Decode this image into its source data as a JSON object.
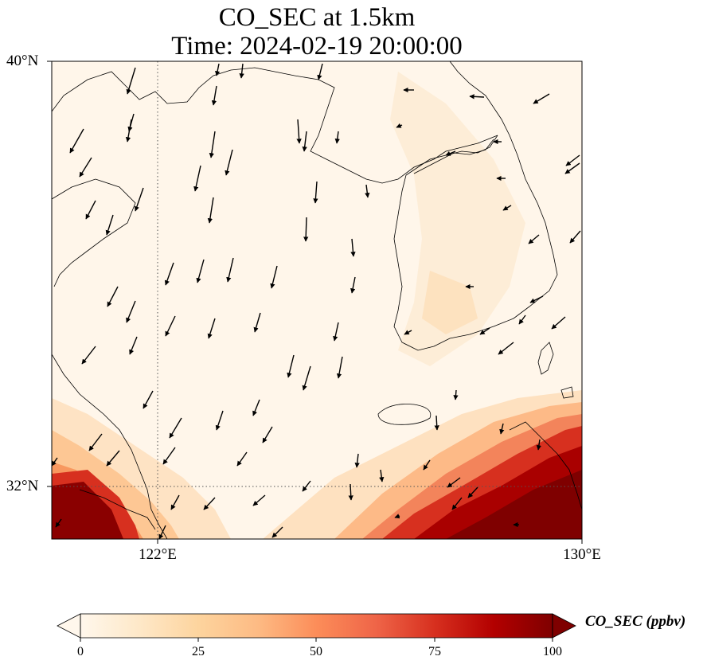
{
  "title_line1": "CO_SEC at 1.5km",
  "title_line2": "Time: 2024-02-19 20:00:00",
  "axes": {
    "lat_labels": [
      "40°N",
      "32°N"
    ],
    "lon_labels": [
      "122°E",
      "130°E"
    ],
    "lon_range": [
      120,
      130
    ],
    "lat_range": [
      31,
      40
    ]
  },
  "colorbar": {
    "label": "CO_SEC (ppbv)",
    "ticks": [
      "0",
      "25",
      "50",
      "75",
      "100"
    ],
    "range": [
      0,
      100
    ],
    "extend": "both",
    "colormap": "OrRd",
    "stops": [
      "#fff7ec",
      "#fee8c8",
      "#fdd49e",
      "#fdbb84",
      "#fc8d59",
      "#ef6548",
      "#d7301f",
      "#b30000",
      "#7f0000"
    ]
  },
  "field": {
    "variable": "CO_SEC",
    "height": "1.5km",
    "gridlines": [
      "122°E",
      "32°N"
    ]
  }
}
